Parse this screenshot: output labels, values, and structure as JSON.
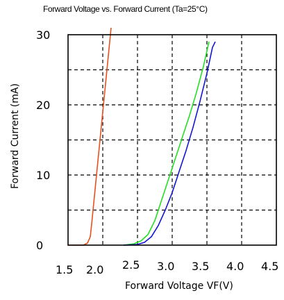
{
  "chart_data": {
    "type": "line",
    "title": "Forward Voltage vs.  Forward Current (Ta=25°C)",
    "xlabel": "Forward Voltage  VF(V)",
    "ylabel": "Forward Current (mA)",
    "xlim": [
      1.5,
      4.5
    ],
    "ylim": [
      0,
      30
    ],
    "x_ticks": [
      "1.5",
      "2.0",
      "2.5",
      "3.0",
      "3.5",
      "4.0",
      "4.5"
    ],
    "y_ticks": [
      "0",
      "10",
      "20",
      "30"
    ],
    "grid": true,
    "series": [
      {
        "color": "#e8501c",
        "points": [
          [
            1.5,
            0
          ],
          [
            1.72,
            0
          ],
          [
            1.78,
            0.3
          ],
          [
            1.82,
            1.2
          ],
          [
            1.84,
            3
          ],
          [
            1.9,
            9
          ],
          [
            1.96,
            15
          ],
          [
            2.02,
            21
          ],
          [
            2.08,
            27
          ],
          [
            2.12,
            31
          ]
        ]
      },
      {
        "color": "#22e022",
        "points": [
          [
            2.3,
            0
          ],
          [
            2.45,
            0.2
          ],
          [
            2.55,
            0.6
          ],
          [
            2.65,
            1.5
          ],
          [
            2.75,
            3.5
          ],
          [
            2.85,
            6.5
          ],
          [
            2.95,
            9.5
          ],
          [
            3.05,
            12.5
          ],
          [
            3.15,
            15.5
          ],
          [
            3.25,
            18.5
          ],
          [
            3.35,
            21.8
          ],
          [
            3.45,
            25.5
          ],
          [
            3.53,
            29
          ]
        ]
      },
      {
        "color": "#1414d2",
        "points": [
          [
            2.3,
            0
          ],
          [
            2.5,
            0.1
          ],
          [
            2.6,
            0.4
          ],
          [
            2.7,
            1.2
          ],
          [
            2.8,
            2.8
          ],
          [
            2.9,
            5
          ],
          [
            3.0,
            7.5
          ],
          [
            3.1,
            10.5
          ],
          [
            3.2,
            13.5
          ],
          [
            3.3,
            16.8
          ],
          [
            3.4,
            20.5
          ],
          [
            3.5,
            24.5
          ],
          [
            3.58,
            28.2
          ],
          [
            3.62,
            29
          ]
        ]
      }
    ]
  }
}
